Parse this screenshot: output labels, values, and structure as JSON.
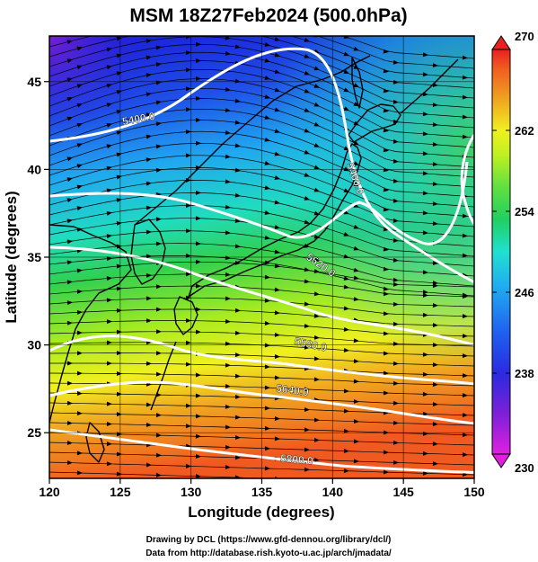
{
  "title": "MSM 18Z27Feb2024 (500.0hPa)",
  "x_axis": {
    "label": "Longitude (degrees)",
    "range": [
      120,
      150
    ],
    "ticks": [
      "120",
      "125",
      "130",
      "135",
      "140",
      "145",
      "150"
    ]
  },
  "y_axis": {
    "label": "Latitude  (degrees)",
    "range": [
      22.4,
      47.6
    ],
    "ticks": [
      "25",
      "30",
      "35",
      "40",
      "45"
    ]
  },
  "colorbar": {
    "min": 230,
    "max": 270,
    "ticks": [
      "230",
      "238",
      "246",
      "254",
      "262",
      "270"
    ],
    "colors": [
      "#e020e0",
      "#7c20d8",
      "#2a2ae0",
      "#2060f0",
      "#20b0f0",
      "#20e0d0",
      "#20d060",
      "#60e040",
      "#c0f020",
      "#f0f020",
      "#f0a020",
      "#f06020",
      "#e82020"
    ]
  },
  "contours": [
    {
      "value": 5400,
      "label": "5400.0"
    },
    {
      "value": 5460,
      "label": "5460.0"
    },
    {
      "value": 5520,
      "label": "5520.0"
    },
    {
      "value": 5580,
      "label": "5580.0"
    },
    {
      "value": 5640,
      "label": "5640.0"
    },
    {
      "value": 5700,
      "label": "5700.0"
    },
    {
      "value": 5760,
      "label": "5760.0"
    },
    {
      "value": 5800,
      "label": "5800.0"
    }
  ],
  "footer": {
    "line1": "Drawing by DCL (https://www.gfd-dennou.org/library/dcl/)",
    "line2": "Data from http://database.rish.kyoto-u.ac.jp/arch/jmadata/"
  }
}
